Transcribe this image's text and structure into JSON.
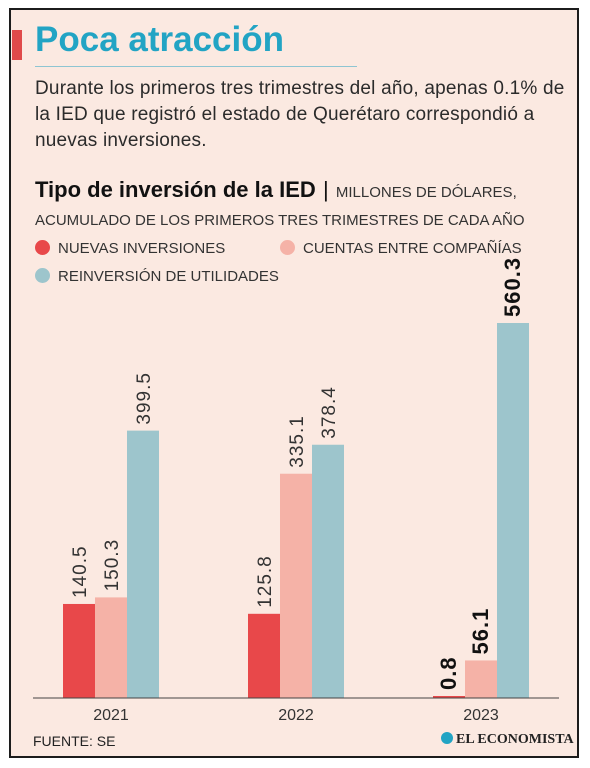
{
  "headline": "Poca atracción",
  "intro": "Durante los primeros tres trimestres del año, apenas 0.1% de la IED que registró el estado de Querétaro correspondió a nuevas inversiones.",
  "chart_title": "Tipo de inversión de la IED",
  "chart_separator": "|",
  "chart_subtitle": "Millones de dólares, acumulado de los primeros tres trimestres de cada año",
  "source": "FUENTE: SE",
  "brand": "EL ECONOMISTA",
  "colors": {
    "headline": "#22a4c4",
    "nuevas": "#e8484a",
    "cuentas": "#f5b2a7",
    "reinversion": "#9dc5cc"
  },
  "chart_data": {
    "type": "bar",
    "categories": [
      "2021",
      "2022",
      "2023"
    ],
    "series": [
      {
        "name": "Nuevas inversiones",
        "values": [
          140.5,
          125.8,
          0.8
        ],
        "labels": [
          "140.5",
          "125.8",
          "0.8"
        ]
      },
      {
        "name": "Cuentas entre compañías",
        "values": [
          150.3,
          335.1,
          56.1
        ],
        "labels": [
          "150.3",
          "335.1",
          "56.1"
        ]
      },
      {
        "name": "Reinversión de utilidades",
        "values": [
          399.5,
          378.4,
          560.3
        ],
        "labels": [
          "399.5",
          "378.4",
          "560.3"
        ]
      }
    ],
    "bold_category": "2023",
    "ylim": [
      0,
      600
    ],
    "grid": false,
    "legend_position": "top"
  }
}
